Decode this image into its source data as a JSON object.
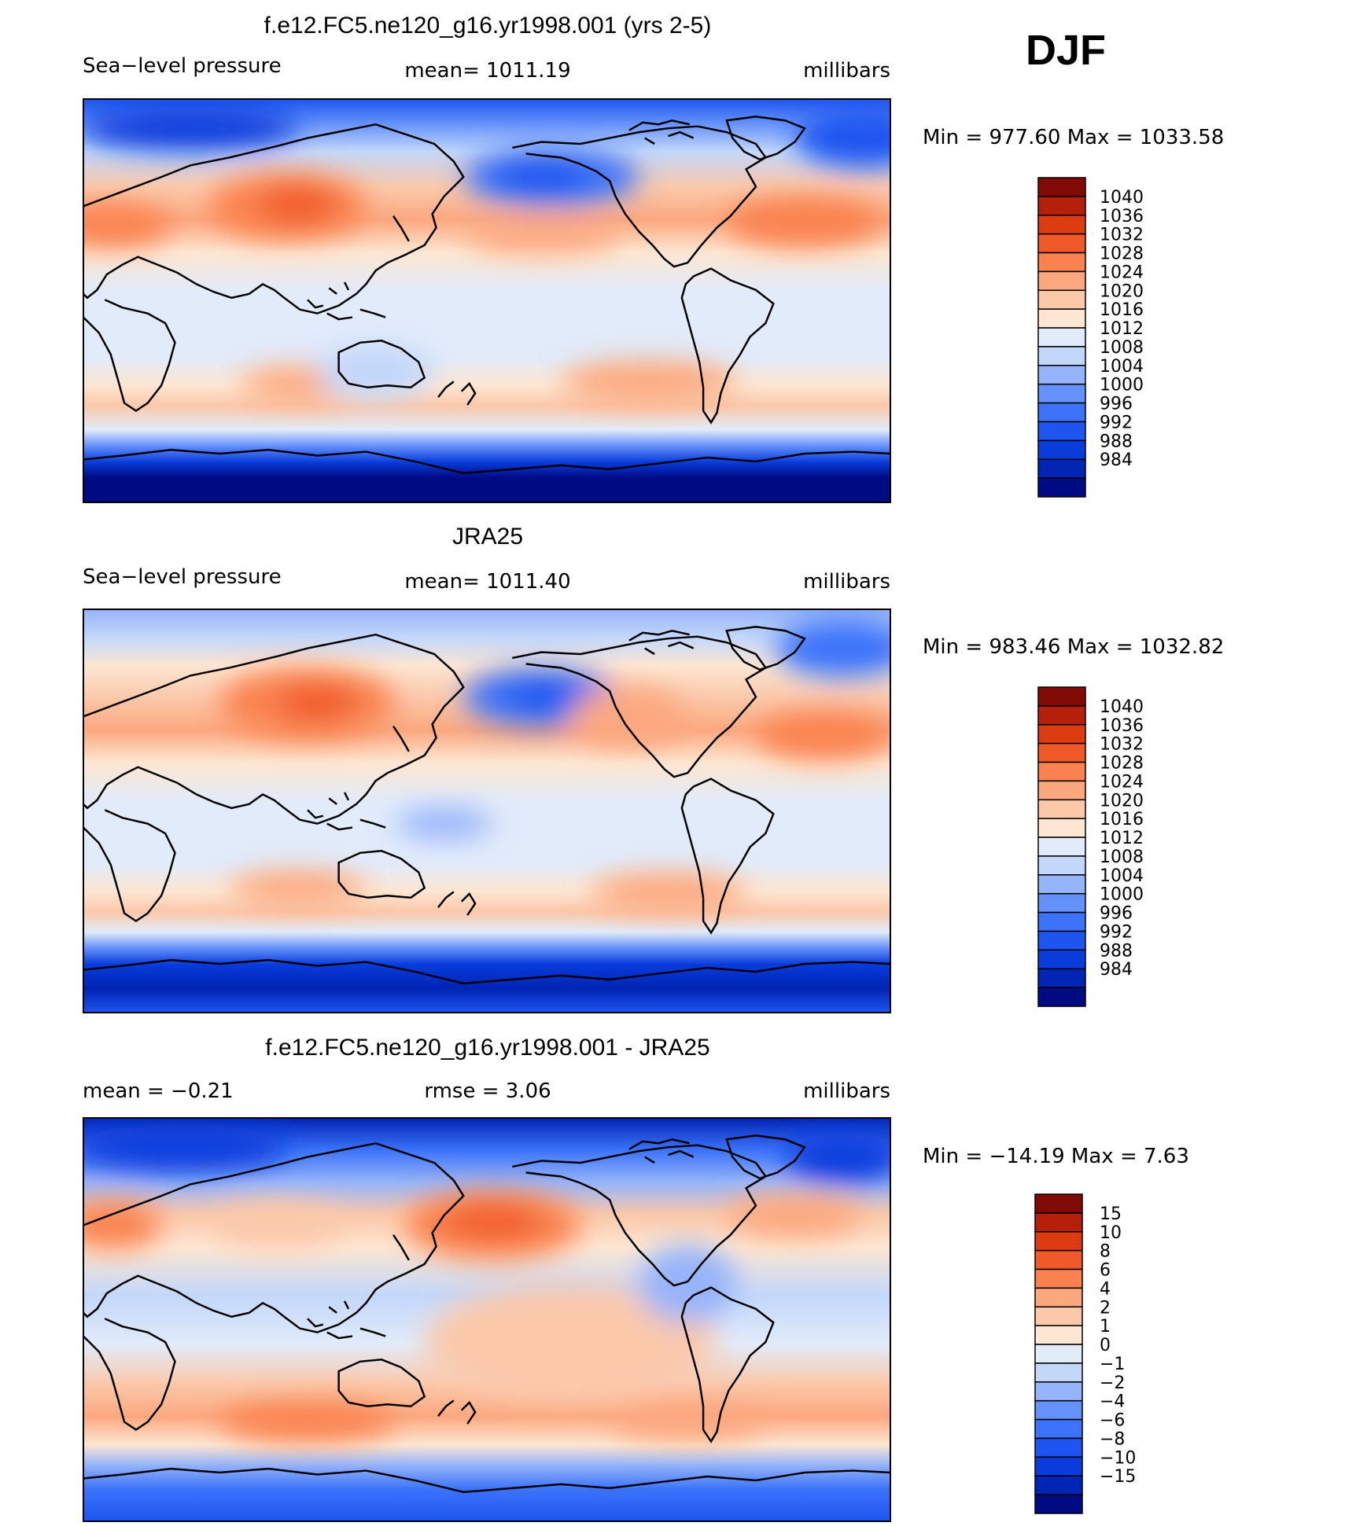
{
  "season": "DJF",
  "palettes": {
    "slp": [
      "#000a82",
      "#0024b4",
      "#0a3cdc",
      "#1e55f0",
      "#3c73fa",
      "#6491fa",
      "#96b4fa",
      "#c3d7fa",
      "#e1ebfa",
      "#fde6d2",
      "#fbc8aa",
      "#fba87f",
      "#fa8250",
      "#f05a28",
      "#dc3c0f",
      "#b4200a",
      "#820a05"
    ],
    "diff": [
      "#000a82",
      "#0024b4",
      "#0a3cdc",
      "#1e55f0",
      "#3c73fa",
      "#6491fa",
      "#96b4fa",
      "#c3d7fa",
      "#e1ebfa",
      "#fde6d2",
      "#fbc8aa",
      "#fba87f",
      "#fa8250",
      "#f05a28",
      "#dc3c0f",
      "#b4200a",
      "#820a05"
    ]
  },
  "panels": [
    {
      "id": "model",
      "title": "f.e12.FC5.ne120_g16.yr1998.001 (yrs 2-5)",
      "left": "Sea−level pressure",
      "center": "mean=  1011.19",
      "right": "millibars",
      "minmax": "Min  =  977.60  Max  =  1033.58",
      "levels": [
        "1040",
        "1036",
        "1032",
        "1028",
        "1024",
        "1020",
        "1016",
        "1012",
        "1008",
        "1004",
        "1000",
        "996",
        "992",
        "988",
        "984"
      ],
      "palette": "slp"
    },
    {
      "id": "obs",
      "title": "JRA25",
      "left": "Sea−level pressure",
      "center": "mean=  1011.40",
      "right": "millibars",
      "minmax": "Min  =  983.46  Max  =  1032.82",
      "levels": [
        "1040",
        "1036",
        "1032",
        "1028",
        "1024",
        "1020",
        "1016",
        "1012",
        "1008",
        "1004",
        "1000",
        "996",
        "992",
        "988",
        "984"
      ],
      "palette": "slp"
    },
    {
      "id": "diff",
      "title": "f.e12.FC5.ne120_g16.yr1998.001 - JRA25",
      "left": "mean  =     −0.21",
      "center": "rmse  =     3.06",
      "right": "millibars",
      "minmax": "Min  =  −14.19  Max  =     7.63",
      "levels": [
        "15",
        "10",
        "8",
        "6",
        "4",
        "2",
        "1",
        "0",
        "−1",
        "−2",
        "−4",
        "−6",
        "−8",
        "−10",
        "−15"
      ],
      "palette": "diff"
    }
  ]
}
